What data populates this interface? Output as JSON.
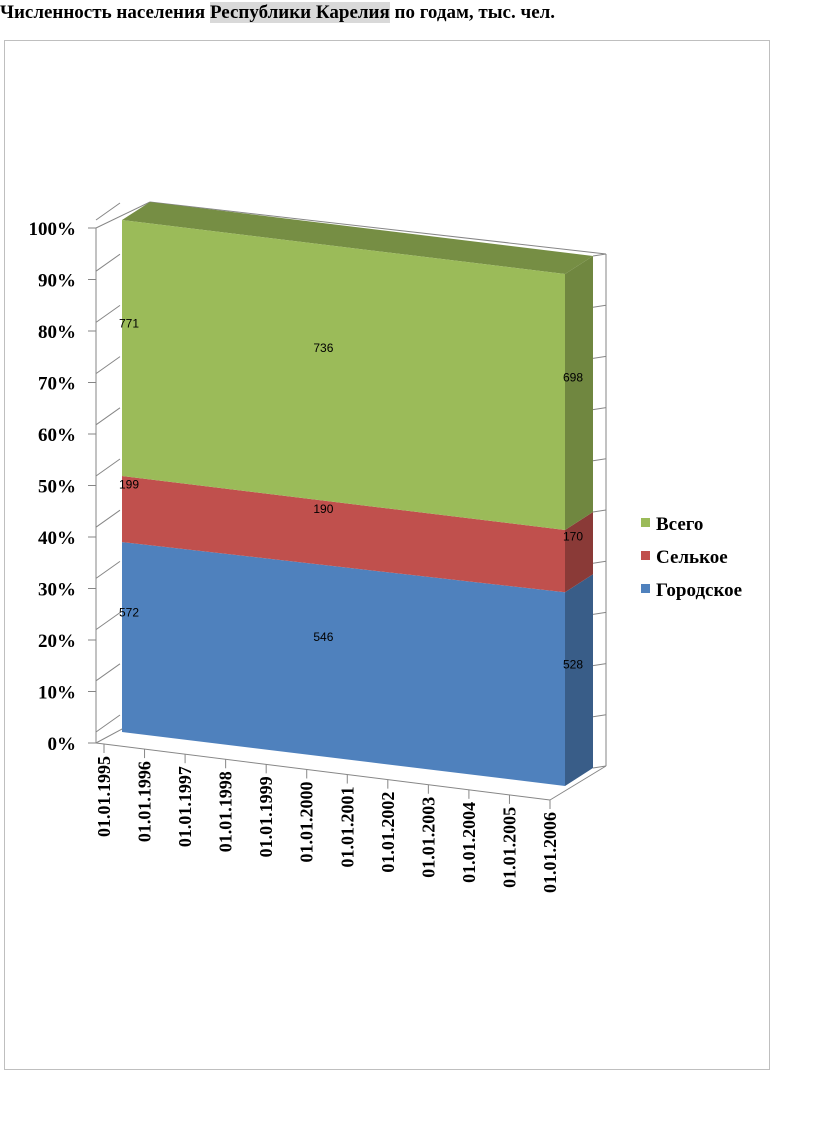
{
  "title": {
    "before": "Численность населения ",
    "highlight": "Республики Карелия",
    "after": " по годам, тыс. чел."
  },
  "chart_data": {
    "type": "area",
    "stacked": "percent",
    "three_d": true,
    "x": [
      "01.01.1995",
      "01.01.1996",
      "01.01.1997",
      "01.01.1998",
      "01.01.1999",
      "01.01.2000",
      "01.01.2001",
      "01.01.2002",
      "01.01.2003",
      "01.01.2004",
      "01.01.2005",
      "01.01.2006"
    ],
    "y_ticks": [
      "0%",
      "10%",
      "20%",
      "30%",
      "40%",
      "50%",
      "60%",
      "70%",
      "80%",
      "90%",
      "100%"
    ],
    "ylim": [
      0,
      100
    ],
    "legend_position": "right",
    "series": [
      {
        "name": "Городское",
        "color": "#4f81bd",
        "anchors": [
          {
            "x": "01.01.1995",
            "value": 572
          },
          {
            "x": "01.01.2000",
            "value": 546
          },
          {
            "x": "01.01.2006",
            "value": 528
          }
        ]
      },
      {
        "name": "Селькое",
        "color": "#c0504d",
        "anchors": [
          {
            "x": "01.01.1995",
            "value": 199
          },
          {
            "x": "01.01.2000",
            "value": 190
          },
          {
            "x": "01.01.2006",
            "value": 170
          }
        ]
      },
      {
        "name": "Всего",
        "color": "#9bbb59",
        "anchors": [
          {
            "x": "01.01.1995",
            "value": 771
          },
          {
            "x": "01.01.2000",
            "value": 736
          },
          {
            "x": "01.01.2006",
            "value": 698
          }
        ]
      }
    ],
    "legend_order": [
      "Всего",
      "Селькое",
      "Городское"
    ]
  }
}
